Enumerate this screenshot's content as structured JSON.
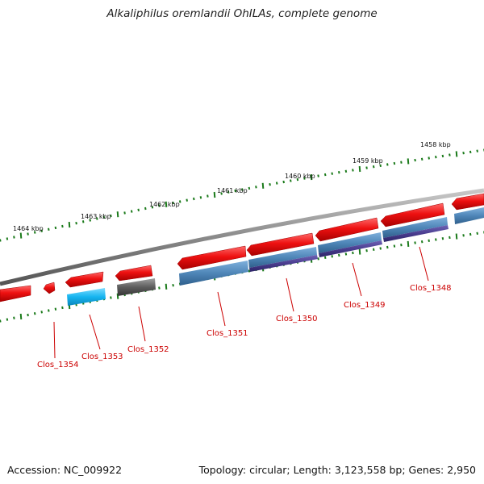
{
  "title": "Alkaliphilus oremlandii OhILAs, complete genome",
  "footer": {
    "accession": "Accession: NC_009922",
    "summary": "Topology: circular; Length: 3,123,558 bp; Genes: 2,950"
  },
  "colors": {
    "backbone": "#8a8a8a",
    "ticks": "#1a7a1a",
    "forward_gene": "#ee1111",
    "label": "#cc0000",
    "steelblue": "#4f86b8",
    "darkslateblue": "#4a3d8f",
    "deepskyblue": "#16b4f0",
    "dimgray": "#5d5d5d"
  },
  "scale_labels": [
    "1464 kbp",
    "1463 kbp",
    "1462 kbp",
    "1461 kbp",
    "1460 kbp",
    "1459 kbp",
    "1458 kbp"
  ],
  "genes": [
    {
      "name": "Clos_1354",
      "track_color": "none"
    },
    {
      "name": "Clos_1353",
      "track_color": "deepskyblue"
    },
    {
      "name": "Clos_1352",
      "track_color": "dimgray"
    },
    {
      "name": "Clos_1351",
      "track_color": "steelblue"
    },
    {
      "name": "Clos_1350",
      "track_color": "steelblue+darkslateblue"
    },
    {
      "name": "Clos_1349",
      "track_color": "steelblue+darkslateblue"
    },
    {
      "name": "Clos_1348",
      "track_color": "steelblue+darkslateblue"
    }
  ]
}
